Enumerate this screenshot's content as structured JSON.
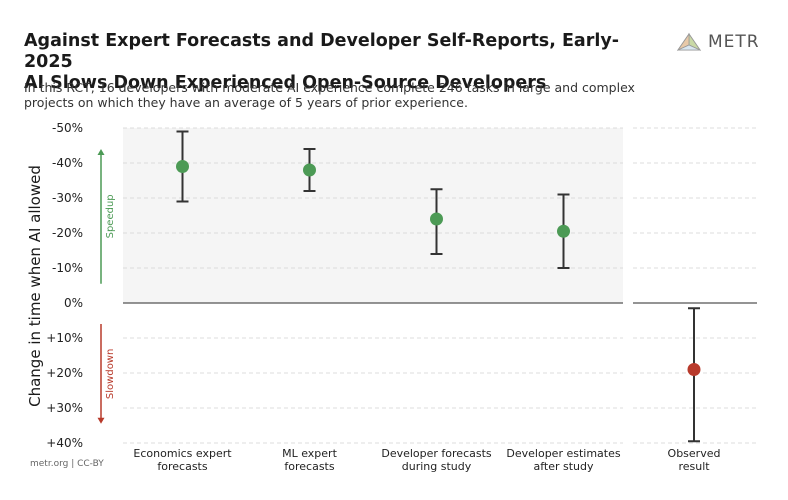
{
  "header": {
    "title_line1": "Against Expert Forecasts and Developer Self-Reports, Early-2025",
    "title_line2": "AI Slows Down Experienced Open-Source Developers",
    "subtitle_line1": "In this RCT, 16 developers with moderate AI experience complete 246 tasks in large and complex",
    "subtitle_line2": "projects on which they have an average of 5 years of prior experience."
  },
  "logo": {
    "text": "METR",
    "icon": "metr-logo-icon"
  },
  "footer": {
    "text": "metr.org  |  CC-BY"
  },
  "colors": {
    "speedup": "#4c9a55",
    "slowdown": "#b83a2b",
    "panel_bg": "#f5f5f5",
    "error_bar": "#333333"
  },
  "chart_data": {
    "type": "scatter",
    "title": "Against Expert Forecasts and Developer Self-Reports, Early-2025 AI Slows Down Experienced Open-Source Developers",
    "ylabel": "Change in time when AI allowed",
    "ylim": [
      -50,
      40
    ],
    "y_ticks": [
      -50,
      -40,
      -30,
      -20,
      -10,
      0,
      10,
      20,
      30,
      40
    ],
    "y_tick_labels": [
      "-50%",
      "-40%",
      "-30%",
      "-20%",
      "-10%",
      "0%",
      "+10%",
      "+20%",
      "+30%",
      "+40%"
    ],
    "grid": true,
    "direction_labels": {
      "up": "Speedup",
      "down": "Slowdown"
    },
    "forecast_panel": [
      {
        "label_line1": "Economics expert",
        "label_line2": "forecasts",
        "value": -39,
        "lower": -49,
        "upper": -29,
        "color": "#4c9a55"
      },
      {
        "label_line1": "ML expert",
        "label_line2": "forecasts",
        "value": -38,
        "lower": -44,
        "upper": -32,
        "color": "#4c9a55"
      },
      {
        "label_line1": "Developer forecasts",
        "label_line2": "during study",
        "value": -24,
        "lower": -32.5,
        "upper": -14,
        "color": "#4c9a55"
      },
      {
        "label_line1": "Developer estimates",
        "label_line2": "after study",
        "value": -20.5,
        "lower": -31,
        "upper": -10,
        "color": "#4c9a55"
      }
    ],
    "observed_panel": [
      {
        "label_line1": "Observed",
        "label_line2": "result",
        "value": 19,
        "lower": 1.5,
        "upper": 39.5,
        "color": "#b83a2b"
      }
    ]
  }
}
